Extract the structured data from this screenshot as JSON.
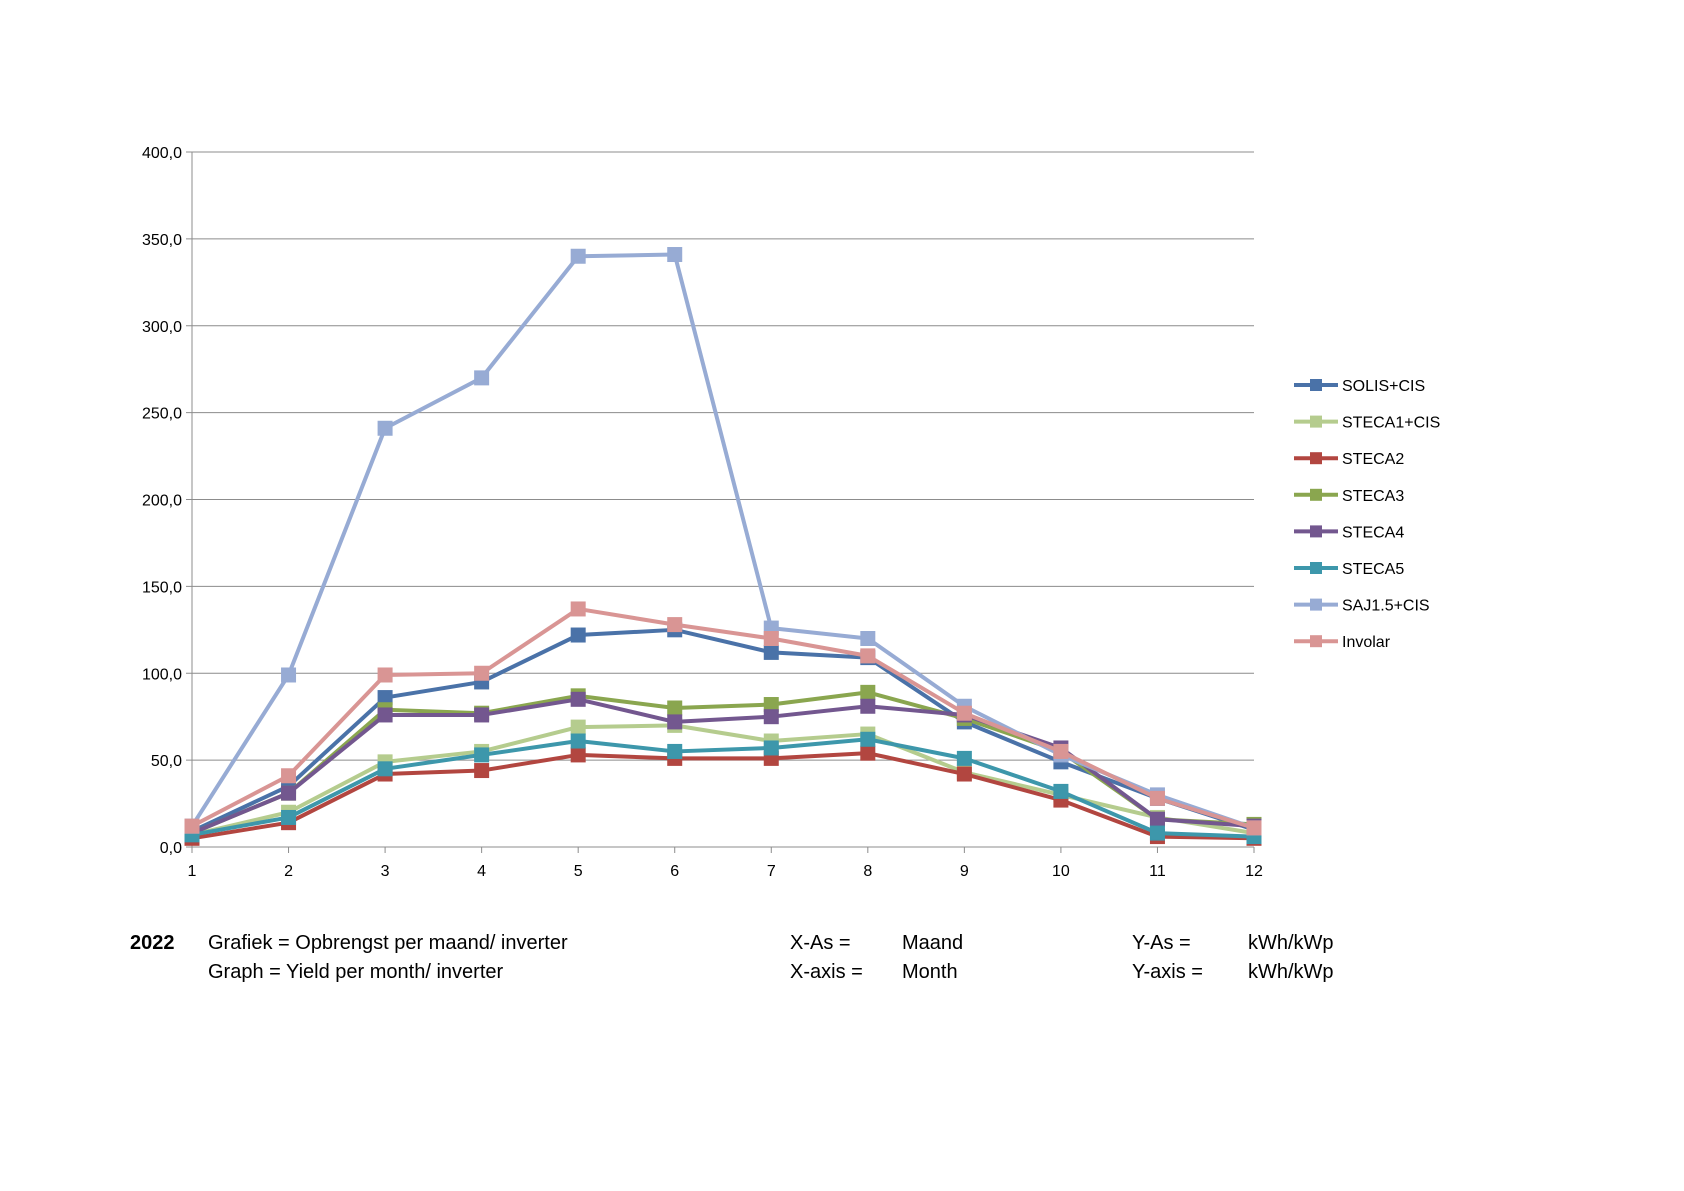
{
  "chart_data": {
    "type": "line",
    "x": [
      1,
      2,
      3,
      4,
      5,
      6,
      7,
      8,
      9,
      10,
      11,
      12
    ],
    "ylim": [
      0,
      400
    ],
    "yticks": [
      "0,0",
      "50,0",
      "100,0",
      "150,0",
      "200,0",
      "250,0",
      "300,0",
      "350,0",
      "400,0"
    ],
    "grid": true,
    "legend_position": "right",
    "series": [
      {
        "name": "SOLIS+CIS",
        "color": "#4a72a8",
        "values": [
          9,
          35,
          86,
          95,
          122,
          125,
          112,
          109,
          72,
          49,
          28,
          10
        ]
      },
      {
        "name": "STECA1+CIS",
        "color": "#b5cc8e",
        "values": [
          7,
          20,
          49,
          55,
          69,
          70,
          61,
          65,
          43,
          30,
          17,
          8
        ]
      },
      {
        "name": "STECA2",
        "color": "#b24640",
        "values": [
          5,
          14,
          42,
          44,
          53,
          51,
          51,
          54,
          42,
          27,
          6,
          5
        ]
      },
      {
        "name": "STECA3",
        "color": "#8aa64f",
        "values": [
          8,
          31,
          79,
          77,
          87,
          80,
          82,
          89,
          74,
          55,
          16,
          13
        ]
      },
      {
        "name": "STECA4",
        "color": "#73578f",
        "values": [
          8,
          31,
          76,
          76,
          85,
          72,
          75,
          81,
          76,
          57,
          16,
          12
        ]
      },
      {
        "name": "STECA5",
        "color": "#3d97ab",
        "values": [
          7,
          17,
          45,
          53,
          61,
          55,
          57,
          62,
          51,
          32,
          8,
          6
        ]
      },
      {
        "name": "SAJ1.5+CIS",
        "color": "#97abd4",
        "values": [
          12,
          99,
          241,
          270,
          340,
          341,
          126,
          120,
          81,
          53,
          30,
          11
        ]
      },
      {
        "name": "Involar",
        "color": "#d99594",
        "values": [
          12,
          41,
          99,
          100,
          137,
          128,
          120,
          110,
          77,
          55,
          28,
          11
        ]
      }
    ]
  },
  "caption": {
    "year": "2022",
    "line1_desc": "Grafiek = Opbrengst per maand/ inverter",
    "line2_desc": "Graph = Yield per month/ inverter",
    "line1_xlabel": "X-As =",
    "line1_xvalue": "Maand",
    "line2_xlabel": "X-axis =",
    "line2_xvalue": "Month",
    "line1_ylabel": "Y-As =",
    "line1_yvalue": "kWh/kWp",
    "line2_ylabel": "Y-axis =",
    "line2_yvalue": "kWh/kWp"
  }
}
